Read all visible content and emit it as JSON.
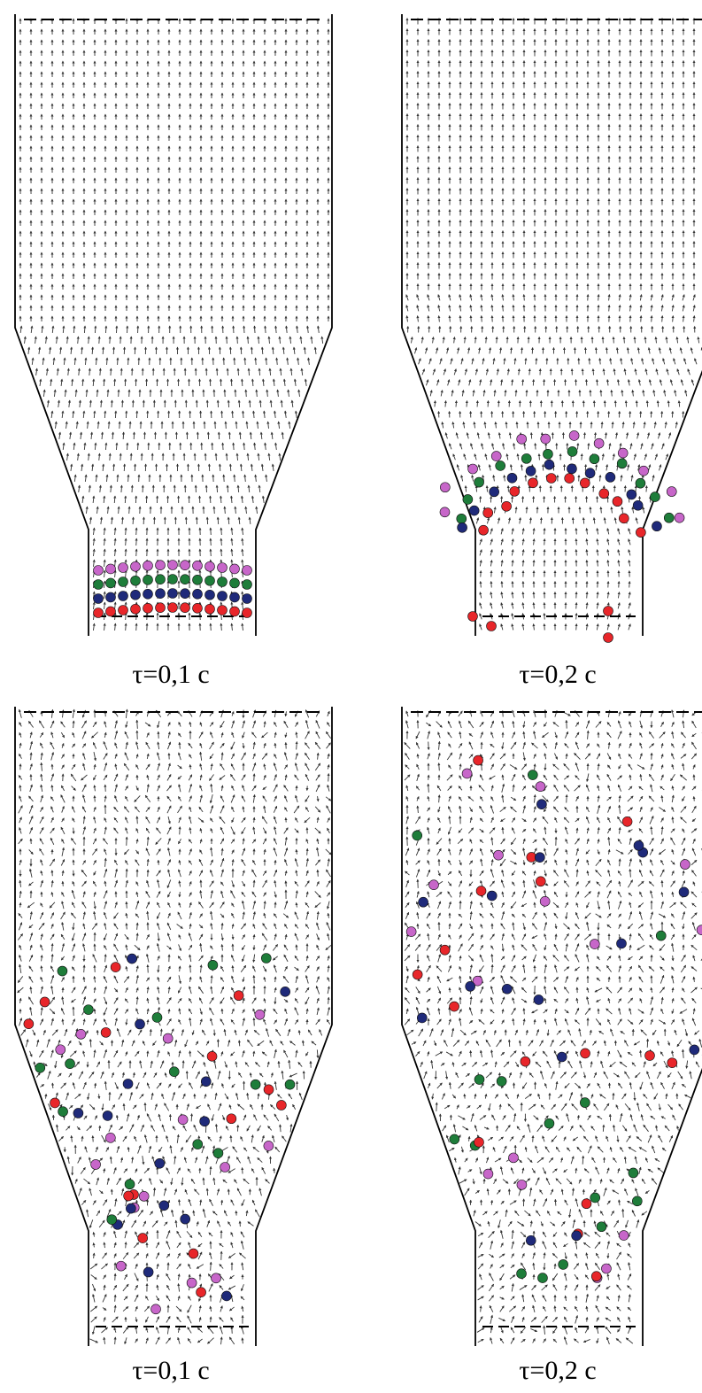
{
  "figure": {
    "panels": [
      {
        "caption": "τ=0,1 с",
        "particle_state": "initial-layers"
      },
      {
        "caption": "τ=0,2 с",
        "particle_state": "lifted-arc"
      },
      {
        "caption": "τ=0,1 с",
        "particle_state": "dispersed"
      },
      {
        "caption": "τ=0,2 с",
        "particle_state": "fully-mixed"
      }
    ],
    "particle_colors": {
      "red": "#e8262a",
      "navy": "#1f2a7a",
      "green": "#1e7d3a",
      "violet": "#c766c9"
    },
    "line_color": "#000000",
    "arrow_color": "#333333"
  }
}
